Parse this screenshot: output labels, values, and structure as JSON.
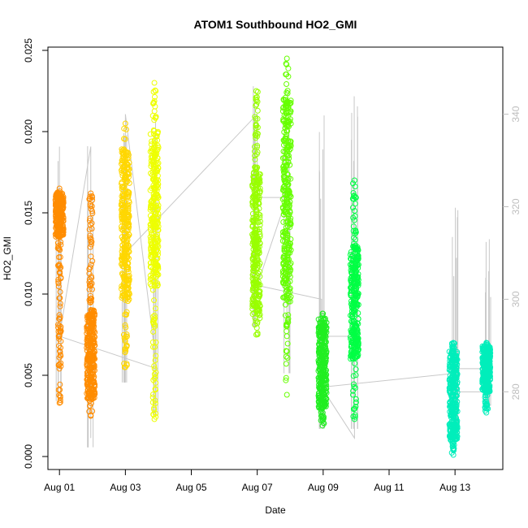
{
  "chart_data": {
    "type": "scatter",
    "title": "ATOM1 Southbound HO2_GMI",
    "xlabel": "Date",
    "ylabel": "HO2_GMI",
    "x_unit": "days since Aug 01",
    "xlim": [
      -0.35,
      13.45
    ],
    "ylim": [
      -0.0008,
      0.0252
    ],
    "y2lim": [
      263.2,
      354.5
    ],
    "x_ticks": [
      {
        "value": 0,
        "label": "Aug 01"
      },
      {
        "value": 2,
        "label": "Aug 03"
      },
      {
        "value": 4,
        "label": "Aug 05"
      },
      {
        "value": 6,
        "label": "Aug 07"
      },
      {
        "value": 8,
        "label": "Aug 09"
      },
      {
        "value": 10,
        "label": "Aug 11"
      },
      {
        "value": 12,
        "label": "Aug 13"
      }
    ],
    "y_ticks": [
      {
        "value": 0.0,
        "label": "0.000"
      },
      {
        "value": 0.005,
        "label": "0.005"
      },
      {
        "value": 0.01,
        "label": "0.010"
      },
      {
        "value": 0.015,
        "label": "0.015"
      },
      {
        "value": 0.02,
        "label": "0.020"
      },
      {
        "value": 0.025,
        "label": "0.025"
      }
    ],
    "y2_ticks": [
      {
        "value": 280,
        "label": "280"
      },
      {
        "value": 300,
        "label": "300"
      },
      {
        "value": 320,
        "label": "320"
      },
      {
        "value": 340,
        "label": "340"
      }
    ],
    "grid": false,
    "legend": "none",
    "colors": {
      "axis": "#000000",
      "secondary_axis": "#bebebe",
      "secondary_line": "#c8c8c8"
    },
    "series": [
      {
        "color": "#ff8c00",
        "clusters": [
          {
            "x": 0.0,
            "ymin": 0.0033,
            "ymax": 0.0165,
            "ylo_dense": 0.0135,
            "yhi_dense": 0.0163
          },
          {
            "x": 0.95,
            "ymin": 0.0025,
            "ymax": 0.0162,
            "ylo_dense": 0.0035,
            "yhi_dense": 0.009
          }
        ]
      },
      {
        "color": "#ffd700",
        "clusters": [
          {
            "x": 2.0,
            "ymin": 0.0055,
            "ymax": 0.0205,
            "ylo_dense": 0.0095,
            "yhi_dense": 0.019
          }
        ]
      },
      {
        "color": "#eeff00",
        "clusters": [
          {
            "x": 2.88,
            "ymin": 0.0023,
            "ymax": 0.023,
            "ylo_dense": 0.0105,
            "yhi_dense": 0.02
          }
        ]
      },
      {
        "color": "#99ff00",
        "clusters": [
          {
            "x": 5.97,
            "ymin": 0.0075,
            "ymax": 0.0225,
            "ylo_dense": 0.0085,
            "yhi_dense": 0.0175
          }
        ]
      },
      {
        "color": "#66ff00",
        "clusters": [
          {
            "x": 6.9,
            "ymin": 0.0038,
            "ymax": 0.0245,
            "ylo_dense": 0.0095,
            "yhi_dense": 0.022
          }
        ]
      },
      {
        "color": "#22ee22",
        "clusters": [
          {
            "x": 7.98,
            "ymin": 0.0019,
            "ymax": 0.0088,
            "ylo_dense": 0.003,
            "yhi_dense": 0.0085
          }
        ]
      },
      {
        "color": "#00ff44",
        "clusters": [
          {
            "x": 8.95,
            "ymin": 0.0023,
            "ymax": 0.017,
            "ylo_dense": 0.006,
            "yhi_dense": 0.013
          }
        ]
      },
      {
        "color": "#00eebb",
        "clusters": [
          {
            "x": 11.95,
            "ymin": 0.0001,
            "ymax": 0.007,
            "ylo_dense": 0.001,
            "yhi_dense": 0.0065
          },
          {
            "x": 12.95,
            "ymin": 0.0027,
            "ymax": 0.007,
            "ylo_dense": 0.004,
            "yhi_dense": 0.0068
          }
        ]
      }
    ],
    "secondary_line": {
      "x": [
        0.0,
        0.0,
        0.0,
        0.95,
        0.95,
        0.95,
        0.0,
        2.95,
        2.0,
        2.0,
        2.0,
        6.0,
        6.0,
        6.9,
        6.9,
        6.9,
        6.0,
        7.95,
        7.95,
        8.95,
        8.95,
        7.95,
        12.0,
        12.0,
        13.0,
        13.0,
        12.0,
        13.0
      ],
      "y": [
        333,
        333,
        292,
        333,
        270,
        333,
        292,
        285,
        340,
        340,
        310,
        340,
        322,
        322,
        295,
        322,
        303,
        300,
        292,
        292,
        270,
        281,
        284,
        280,
        280,
        285,
        285,
        285
      ]
    },
    "secondary_spikes": [
      {
        "x": 0.0,
        "ymin": 278,
        "ymax": 334
      },
      {
        "x": 0.95,
        "ymin": 268,
        "ymax": 335
      },
      {
        "x": 2.0,
        "ymin": 282,
        "ymax": 346
      },
      {
        "x": 2.95,
        "ymin": 275,
        "ymax": 344
      },
      {
        "x": 5.97,
        "ymin": 294,
        "ymax": 350
      },
      {
        "x": 6.9,
        "ymin": 284,
        "ymax": 346
      },
      {
        "x": 7.98,
        "ymin": 272,
        "ymax": 342
      },
      {
        "x": 8.95,
        "ymin": 272,
        "ymax": 345
      },
      {
        "x": 12.0,
        "ymin": 270,
        "ymax": 320
      },
      {
        "x": 13.0,
        "ymin": 277,
        "ymax": 313
      }
    ]
  }
}
